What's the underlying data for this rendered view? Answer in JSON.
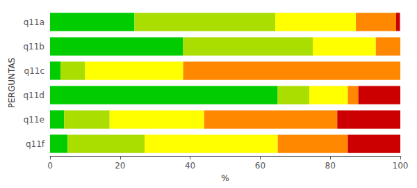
{
  "chart_data": {
    "type": "bar",
    "orientation": "horizontal",
    "stacked": true,
    "categories": [
      "q11a",
      "q11b",
      "q11c",
      "q11d",
      "q11e",
      "q11f"
    ],
    "series": [
      {
        "color": "#00cc00",
        "values": [
          24.1,
          38.0,
          3.0,
          65.0,
          4.0,
          5.0
        ]
      },
      {
        "color": "#aadd00",
        "values": [
          40.2,
          37.0,
          7.0,
          9.0,
          13.0,
          22.0
        ]
      },
      {
        "color": "#ffff00",
        "values": [
          23.0,
          18.0,
          28.0,
          11.0,
          27.0,
          38.0
        ]
      },
      {
        "color": "#ff8800",
        "values": [
          11.5,
          7.0,
          62.0,
          3.0,
          38.0,
          20.0
        ]
      },
      {
        "color": "#cc0000",
        "values": [
          1.1,
          0.0,
          0.0,
          12.0,
          18.0,
          15.0
        ]
      }
    ],
    "xlabel": "%",
    "ylabel": "PERGUNTAS",
    "xlim": [
      0,
      100
    ],
    "xticks": [
      0,
      20,
      40,
      60,
      80,
      100
    ],
    "grid": false
  }
}
